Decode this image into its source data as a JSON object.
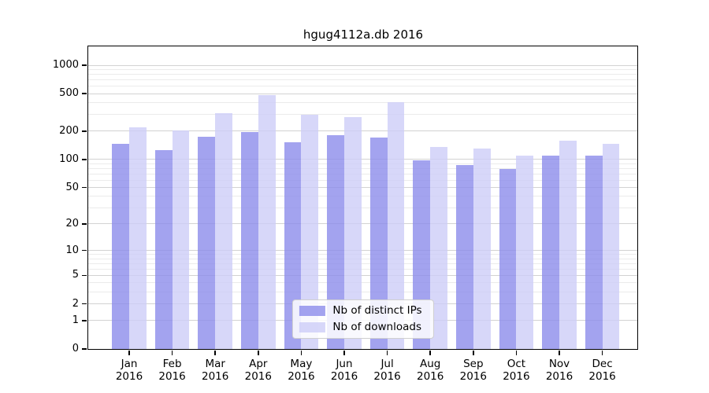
{
  "title": "hgug4112a.db 2016",
  "chart_data": {
    "type": "bar",
    "title": "hgug4112a.db 2016",
    "categories": [
      "Jan",
      "Feb",
      "Mar",
      "Apr",
      "May",
      "Jun",
      "Jul",
      "Aug",
      "Sep",
      "Oct",
      "Nov",
      "Dec"
    ],
    "year": "2016",
    "series": [
      {
        "name": "Nb of distinct IPs",
        "color": "#a3a3ef",
        "rgba": "rgba(140,140,235,0.8)",
        "values": [
          146,
          127,
          175,
          197,
          153,
          180,
          171,
          98,
          87,
          79,
          110,
          110
        ]
      },
      {
        "name": "Nb of downloads",
        "color": "#d9d9fa",
        "rgba": "rgba(205,205,248,0.8)",
        "values": [
          220,
          205,
          310,
          480,
          300,
          285,
          410,
          137,
          131,
          110,
          158,
          147
        ]
      }
    ],
    "yscale": "log1p",
    "yticks": [
      0,
      1,
      2,
      5,
      10,
      20,
      50,
      100,
      200,
      500,
      1000
    ],
    "minor_ticks": [
      3,
      4,
      6,
      7,
      8,
      9,
      30,
      40,
      60,
      70,
      80,
      90,
      300,
      400,
      600,
      700,
      800,
      900
    ],
    "ylim": [
      0,
      1550
    ],
    "xlabel": "",
    "ylabel": "",
    "grid": true,
    "legend_position": "lower center"
  },
  "legend": {
    "items": [
      "Nb of distinct IPs",
      "Nb of downloads"
    ]
  },
  "colors": {
    "ips_bar": "#a3a3ef",
    "downloads_bar": "#d9d9fa",
    "major_grid": "#d2d2d2",
    "minor_grid": "#ebebeb",
    "axis": "#000000",
    "background": "#ffffff"
  }
}
